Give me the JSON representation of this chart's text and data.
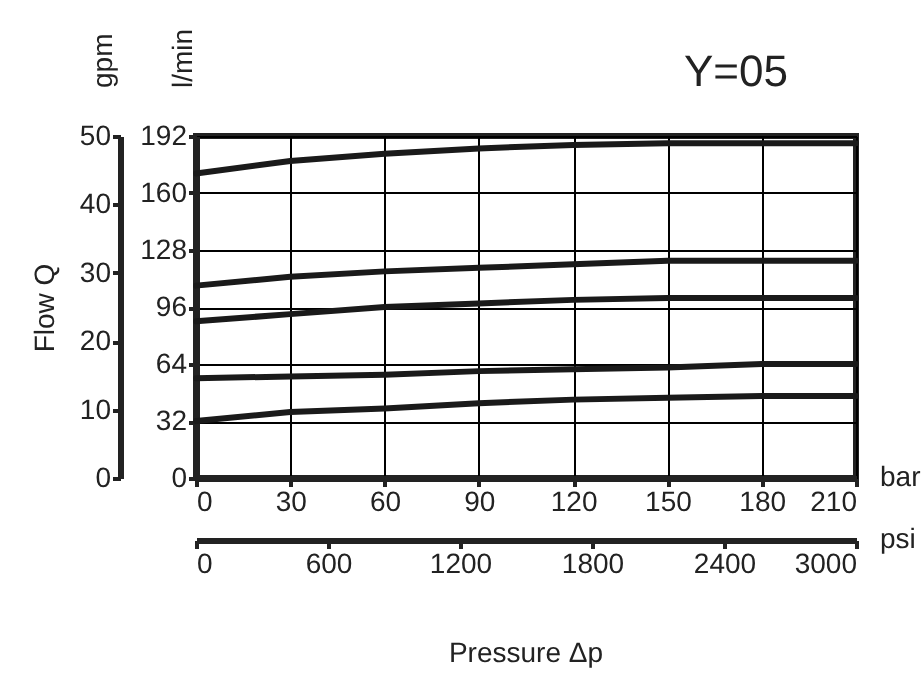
{
  "chart_data": {
    "type": "line",
    "title": "Y=05",
    "xlabel": "Pressure Δp",
    "y2label": "Flow Q",
    "annotations": [
      "l/min",
      "gpm",
      "bar",
      "psi"
    ],
    "x": [
      0,
      30,
      60,
      90,
      120,
      150,
      180,
      210
    ],
    "series": [
      {
        "color": "#1a1a1a",
        "values": [
          171,
          178,
          182,
          185,
          187,
          188,
          188,
          188
        ]
      },
      {
        "color": "#1a1a1a",
        "values": [
          108,
          113,
          116,
          118,
          120,
          122,
          122,
          122
        ]
      },
      {
        "color": "#1a1a1a",
        "values": [
          88,
          92,
          96,
          98,
          100,
          101,
          101,
          101
        ]
      },
      {
        "color": "#1a1a1a",
        "values": [
          56,
          57,
          58,
          60,
          61,
          62,
          64,
          64
        ]
      },
      {
        "color": "#1a1a1a",
        "values": [
          32,
          37,
          39,
          42,
          44,
          45,
          46,
          46
        ]
      }
    ],
    "xlim": [
      0,
      210
    ],
    "xticks": [
      0,
      30,
      60,
      90,
      120,
      150,
      180,
      210
    ],
    "x2lim": [
      0,
      3000
    ],
    "x2ticks": [
      0,
      600,
      1200,
      1800,
      2400,
      3000
    ],
    "ylim": [
      0,
      192
    ],
    "yticks": [
      0,
      32,
      64,
      96,
      128,
      160,
      192
    ],
    "y2lim": [
      0,
      50
    ],
    "y2ticks": [
      0,
      10,
      20,
      30,
      40,
      50
    ],
    "grid": true,
    "legend": false,
    "marker": "none",
    "line_style": "solid"
  }
}
